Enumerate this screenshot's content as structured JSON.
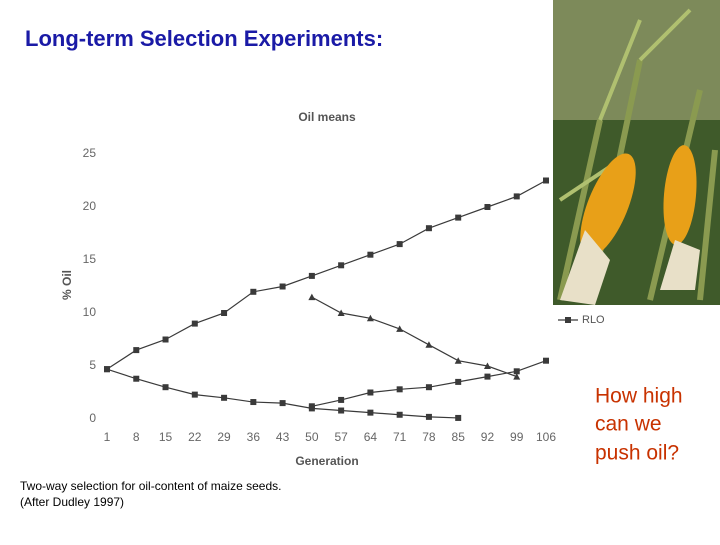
{
  "slide": {
    "title": "Long-term Selection Experiments:",
    "caption": [
      "Two-way selection for oil-content of maize seeds.",
      "(After Dudley 1997)"
    ],
    "note": [
      "How high",
      "can we",
      "push oil?"
    ]
  },
  "chart_data": {
    "type": "line",
    "title": "Oil means",
    "xlabel": "Generation",
    "ylabel": "% Oil",
    "x": [
      1,
      8,
      15,
      22,
      29,
      36,
      43,
      50,
      57,
      64,
      71,
      78,
      85,
      92,
      99,
      106
    ],
    "xlim": [
      1,
      106
    ],
    "xticks": [
      1,
      8,
      15,
      22,
      29,
      36,
      43,
      50,
      57,
      64,
      71,
      78,
      85,
      92,
      99,
      106
    ],
    "ylim": [
      0,
      25
    ],
    "yticks": [
      0,
      5,
      10,
      15,
      20,
      25
    ],
    "series": [
      {
        "color": "#3a3a3a",
        "marker": "square",
        "values": [
          4.7,
          6.5,
          7.5,
          9,
          10,
          12,
          12.5,
          13.5,
          14.5,
          15.5,
          16.5,
          18,
          19,
          20,
          21,
          22.5
        ]
      },
      {
        "color": "#3a3a3a",
        "marker": "triangle",
        "values": [
          null,
          null,
          null,
          null,
          null,
          null,
          null,
          11.5,
          10,
          9.5,
          8.5,
          7,
          5.5,
          5,
          4,
          null
        ]
      },
      {
        "color": "#3a3a3a",
        "marker": "square",
        "values": [
          4.7,
          3.8,
          3,
          2.3,
          2,
          1.6,
          1.5,
          1,
          0.8,
          0.6,
          0.4,
          0.2,
          0.1,
          null,
          null,
          null
        ]
      },
      {
        "name": "RLO",
        "color": "#3a3a3a",
        "marker": "square",
        "values": [
          null,
          null,
          null,
          null,
          null,
          null,
          null,
          1.2,
          1.8,
          2.5,
          2.8,
          3,
          3.5,
          4,
          4.5,
          5.5
        ]
      }
    ]
  }
}
